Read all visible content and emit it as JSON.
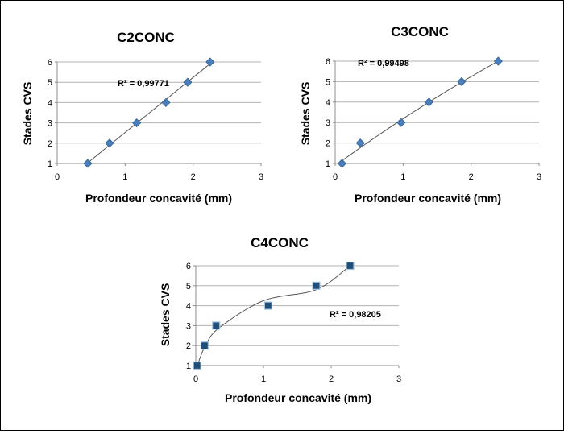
{
  "chart_data": [
    {
      "type": "scatter",
      "title": "C2CONC",
      "xlabel": "Profondeur concavité (mm)",
      "ylabel": "Stades CVS",
      "xlim": [
        0,
        3
      ],
      "ylim": [
        1,
        6
      ],
      "x_ticks": [
        "0",
        "1",
        "2",
        "3"
      ],
      "y_ticks": [
        "1",
        "2",
        "3",
        "4",
        "5",
        "6"
      ],
      "series": [
        {
          "x": [
            0.45,
            0.77,
            1.17,
            1.6,
            1.92,
            2.25
          ],
          "y": [
            1,
            2,
            3,
            4,
            5,
            6
          ],
          "marker": "diamond",
          "color": "#4a7ebb"
        }
      ],
      "trendline": {
        "type": "linear",
        "r2_label": "R² = 0,99771"
      },
      "grid": true
    },
    {
      "type": "scatter",
      "title": "C3CONC",
      "xlabel": "Profondeur concavité (mm)",
      "ylabel": "Stades CVS",
      "xlim": [
        0,
        3
      ],
      "ylim": [
        1,
        6
      ],
      "x_ticks": [
        "0",
        "1",
        "2",
        "3"
      ],
      "y_ticks": [
        "1",
        "2",
        "3",
        "4",
        "5",
        "6"
      ],
      "series": [
        {
          "x": [
            0.1,
            0.37,
            0.97,
            1.38,
            1.86,
            2.4
          ],
          "y": [
            1,
            2,
            3,
            4,
            5,
            6
          ],
          "marker": "diamond",
          "color": "#4a7ebb"
        }
      ],
      "trendline": {
        "type": "polynomial",
        "r2_label": "R² = 0,99498"
      },
      "grid": true
    },
    {
      "type": "scatter",
      "title": "C4CONC",
      "xlabel": "Profondeur concavité (mm)",
      "ylabel": "Stades CVS",
      "xlim": [
        0,
        3
      ],
      "ylim": [
        1,
        6
      ],
      "x_ticks": [
        "0",
        "1",
        "2",
        "3"
      ],
      "y_ticks": [
        "1",
        "2",
        "3",
        "4",
        "5",
        "6"
      ],
      "series": [
        {
          "x": [
            0.02,
            0.13,
            0.3,
            1.07,
            1.78,
            2.28
          ],
          "y": [
            1,
            2,
            3,
            4,
            5,
            6
          ],
          "marker": "square",
          "color": "#1f4e79"
        }
      ],
      "trendline": {
        "type": "polynomial",
        "r2_label": "R² = 0,98205"
      },
      "grid": true
    }
  ]
}
